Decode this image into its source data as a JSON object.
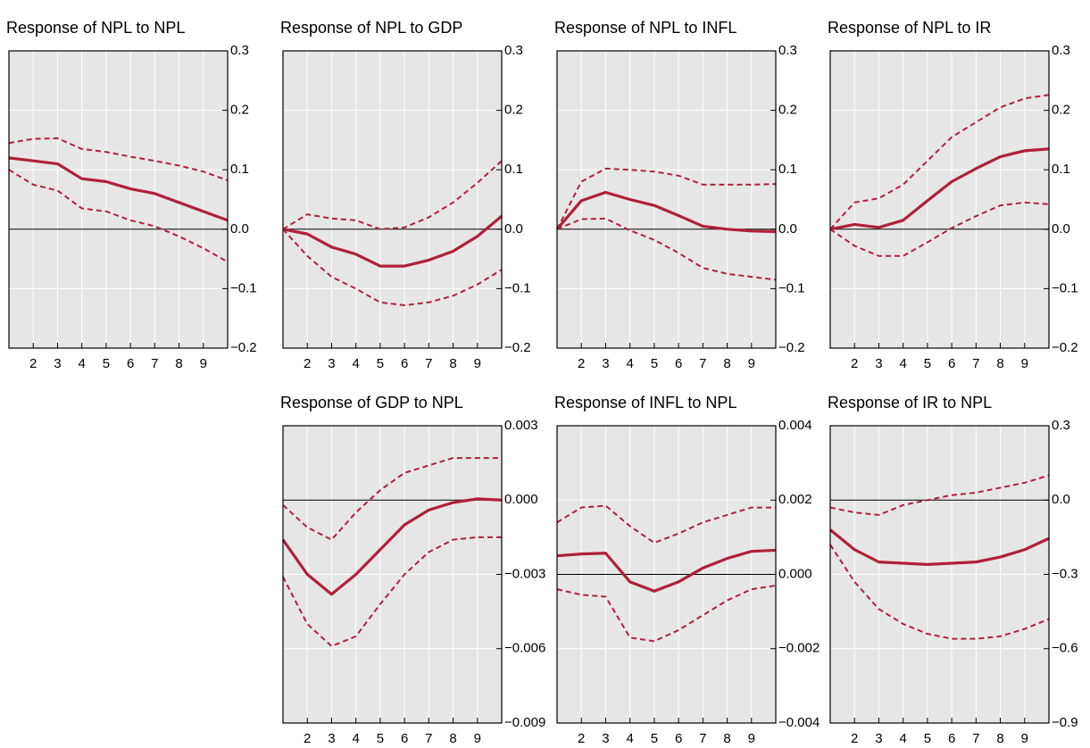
{
  "chart_data": [
    {
      "type": "line",
      "title": "Response of NPL to NPL",
      "x": [
        1,
        2,
        3,
        4,
        5,
        6,
        7,
        8,
        9,
        10
      ],
      "xlim": [
        1,
        10
      ],
      "xticks": [
        2,
        3,
        4,
        5,
        6,
        7,
        8,
        9
      ],
      "ylim": [
        -0.2,
        0.3
      ],
      "yticks": [
        {
          "value": -0.2,
          "label": "−0.2"
        },
        {
          "value": -0.1,
          "label": "−0.1"
        },
        {
          "value": 0,
          "label": "0.0"
        },
        0.1,
        0.2,
        0.3
      ],
      "grid": true,
      "series": [
        {
          "color": "#b0203a",
          "style": "solid",
          "values": [
            0.12,
            0.115,
            0.11,
            0.085,
            0.08,
            0.068,
            0.06,
            0.045,
            0.03,
            0.015
          ]
        },
        {
          "color": "#b0203a",
          "style": "dashed",
          "values": [
            0.145,
            0.152,
            0.153,
            0.135,
            0.13,
            0.122,
            0.115,
            0.107,
            0.097,
            0.082
          ]
        },
        {
          "color": "#b0203a",
          "style": "dashed",
          "values": [
            0.1,
            0.075,
            0.065,
            0.035,
            0.03,
            0.015,
            0.005,
            -0.012,
            -0.032,
            -0.055
          ]
        }
      ]
    },
    {
      "type": "line",
      "title": "Response of NPL to GDP",
      "x": [
        1,
        2,
        3,
        4,
        5,
        6,
        7,
        8,
        9,
        10
      ],
      "xlim": [
        1,
        10
      ],
      "xticks": [
        2,
        3,
        4,
        5,
        6,
        7,
        8,
        9
      ],
      "ylim": [
        -0.2,
        0.3
      ],
      "yticks": [
        {
          "value": -0.2,
          "label": "−0.2"
        },
        {
          "value": -0.1,
          "label": "−0.1"
        },
        {
          "value": 0,
          "label": "0.0"
        },
        0.1,
        0.2,
        0.3
      ],
      "grid": true,
      "series": [
        {
          "color": "#b0203a",
          "style": "solid",
          "values": [
            0,
            -0.008,
            -0.03,
            -0.042,
            -0.062,
            -0.062,
            -0.052,
            -0.037,
            -0.012,
            0.022
          ]
        },
        {
          "color": "#b0203a",
          "style": "dashed",
          "values": [
            0,
            0.025,
            0.018,
            0.015,
            0,
            0.003,
            0.02,
            0.045,
            0.078,
            0.115
          ]
        },
        {
          "color": "#b0203a",
          "style": "dashed",
          "values": [
            0,
            -0.045,
            -0.08,
            -0.1,
            -0.123,
            -0.128,
            -0.123,
            -0.112,
            -0.093,
            -0.068
          ]
        }
      ]
    },
    {
      "type": "line",
      "title": "Response of NPL to INFL",
      "x": [
        1,
        2,
        3,
        4,
        5,
        6,
        7,
        8,
        9,
        10
      ],
      "xlim": [
        1,
        10
      ],
      "xticks": [
        2,
        3,
        4,
        5,
        6,
        7,
        8,
        9
      ],
      "ylim": [
        -0.2,
        0.3
      ],
      "yticks": [
        {
          "value": -0.2,
          "label": "−0.2"
        },
        {
          "value": -0.1,
          "label": "−0.1"
        },
        {
          "value": 0,
          "label": "0.0"
        },
        0.1,
        0.2,
        0.3
      ],
      "grid": true,
      "series": [
        {
          "color": "#b0203a",
          "style": "solid",
          "values": [
            0,
            0.048,
            0.062,
            0.05,
            0.04,
            0.023,
            0.005,
            0,
            -0.003,
            -0.004
          ]
        },
        {
          "color": "#b0203a",
          "style": "dashed",
          "values": [
            0,
            0.08,
            0.102,
            0.1,
            0.097,
            0.09,
            0.075,
            0.075,
            0.075,
            0.076
          ]
        },
        {
          "color": "#b0203a",
          "style": "dashed",
          "values": [
            0,
            0.017,
            0.018,
            -0.002,
            -0.018,
            -0.04,
            -0.065,
            -0.075,
            -0.08,
            -0.085
          ]
        }
      ]
    },
    {
      "type": "line",
      "title": "Response of NPL to IR",
      "x": [
        1,
        2,
        3,
        4,
        5,
        6,
        7,
        8,
        9,
        10
      ],
      "xlim": [
        1,
        10
      ],
      "xticks": [
        2,
        3,
        4,
        5,
        6,
        7,
        8,
        9
      ],
      "ylim": [
        -0.2,
        0.3
      ],
      "yticks": [
        {
          "value": -0.2,
          "label": "−0.2"
        },
        {
          "value": -0.1,
          "label": "−0.1"
        },
        {
          "value": 0,
          "label": "0.0"
        },
        0.1,
        0.2,
        0.3
      ],
      "grid": true,
      "series": [
        {
          "color": "#b0203a",
          "style": "solid",
          "values": [
            0,
            0.008,
            0.003,
            0.015,
            0.048,
            0.08,
            0.102,
            0.122,
            0.132,
            0.135
          ]
        },
        {
          "color": "#b0203a",
          "style": "dashed",
          "values": [
            0,
            0.045,
            0.052,
            0.075,
            0.115,
            0.155,
            0.18,
            0.205,
            0.22,
            0.226
          ]
        },
        {
          "color": "#b0203a",
          "style": "dashed",
          "values": [
            0,
            -0.028,
            -0.045,
            -0.045,
            -0.022,
            0.002,
            0.022,
            0.04,
            0.045,
            0.042
          ]
        }
      ]
    },
    {
      "type": "line",
      "title": "Response of GDP to NPL",
      "x": [
        1,
        2,
        3,
        4,
        5,
        6,
        7,
        8,
        9,
        10
      ],
      "xlim": [
        1,
        10
      ],
      "xticks": [
        2,
        3,
        4,
        5,
        6,
        7,
        8,
        9
      ],
      "ylim": [
        -0.009,
        0.003
      ],
      "yticks": [
        {
          "value": -0.009,
          "label": "−0.009"
        },
        {
          "value": -0.006,
          "label": "−0.006"
        },
        {
          "value": -0.003,
          "label": "−0.003"
        },
        {
          "value": 0,
          "label": "0.000"
        },
        0.003
      ],
      "grid": true,
      "series": [
        {
          "color": "#b0203a",
          "style": "solid",
          "values": [
            -0.0016,
            -0.003,
            -0.0038,
            -0.003,
            -0.002,
            -0.001,
            -0.0004,
            -0.0001,
            5e-05,
            0
          ]
        },
        {
          "color": "#b0203a",
          "style": "dashed",
          "values": [
            -0.0002,
            -0.0011,
            -0.0016,
            -0.0005,
            0.0004,
            0.0011,
            0.0014,
            0.0017,
            0.0017,
            0.0017
          ]
        },
        {
          "color": "#b0203a",
          "style": "dashed",
          "values": [
            -0.0031,
            -0.005,
            -0.0059,
            -0.0055,
            -0.0042,
            -0.003,
            -0.0021,
            -0.0016,
            -0.0015,
            -0.0015
          ]
        }
      ]
    },
    {
      "type": "line",
      "title": "Response of INFL to NPL",
      "x": [
        1,
        2,
        3,
        4,
        5,
        6,
        7,
        8,
        9,
        10
      ],
      "xlim": [
        1,
        10
      ],
      "xticks": [
        2,
        3,
        4,
        5,
        6,
        7,
        8,
        9
      ],
      "ylim": [
        -0.004,
        0.004
      ],
      "yticks": [
        {
          "value": -0.004,
          "label": "−0.004"
        },
        {
          "value": -0.002,
          "label": "−0.002"
        },
        {
          "value": 0,
          "label": "0.000"
        },
        0.002,
        0.004
      ],
      "grid": true,
      "series": [
        {
          "color": "#b0203a",
          "style": "solid",
          "values": [
            0.0005,
            0.00055,
            0.00057,
            -0.0002,
            -0.00045,
            -0.0002,
            0.00017,
            0.00043,
            0.00062,
            0.00065
          ]
        },
        {
          "color": "#b0203a",
          "style": "dashed",
          "values": [
            0.0014,
            0.0018,
            0.00185,
            0.0013,
            0.00085,
            0.0011,
            0.0014,
            0.0016,
            0.0018,
            0.0018
          ]
        },
        {
          "color": "#b0203a",
          "style": "dashed",
          "values": [
            -0.0004,
            -0.00055,
            -0.0006,
            -0.0017,
            -0.0018,
            -0.0015,
            -0.0011,
            -0.0007,
            -0.0004,
            -0.0003
          ]
        }
      ]
    },
    {
      "type": "line",
      "title": "Response of IR to NPL",
      "x": [
        1,
        2,
        3,
        4,
        5,
        6,
        7,
        8,
        9,
        10
      ],
      "xlim": [
        1,
        10
      ],
      "xticks": [
        2,
        3,
        4,
        5,
        6,
        7,
        8,
        9
      ],
      "ylim": [
        -0.9,
        0.3
      ],
      "yticks": [
        {
          "value": -0.9,
          "label": "−0.9"
        },
        {
          "value": -0.6,
          "label": "−0.6"
        },
        {
          "value": -0.3,
          "label": "−0.3"
        },
        {
          "value": 0,
          "label": "0.0"
        },
        0.3
      ],
      "grid": true,
      "series": [
        {
          "color": "#b0203a",
          "style": "solid",
          "values": [
            -0.12,
            -0.2,
            -0.25,
            -0.255,
            -0.26,
            -0.255,
            -0.25,
            -0.23,
            -0.2,
            -0.155
          ]
        },
        {
          "color": "#b0203a",
          "style": "dashed",
          "values": [
            -0.03,
            -0.05,
            -0.06,
            -0.02,
            0,
            0.02,
            0.03,
            0.05,
            0.07,
            0.1
          ]
        },
        {
          "color": "#b0203a",
          "style": "dashed",
          "values": [
            -0.18,
            -0.33,
            -0.44,
            -0.5,
            -0.54,
            -0.56,
            -0.56,
            -0.55,
            -0.52,
            -0.48
          ]
        }
      ]
    }
  ]
}
